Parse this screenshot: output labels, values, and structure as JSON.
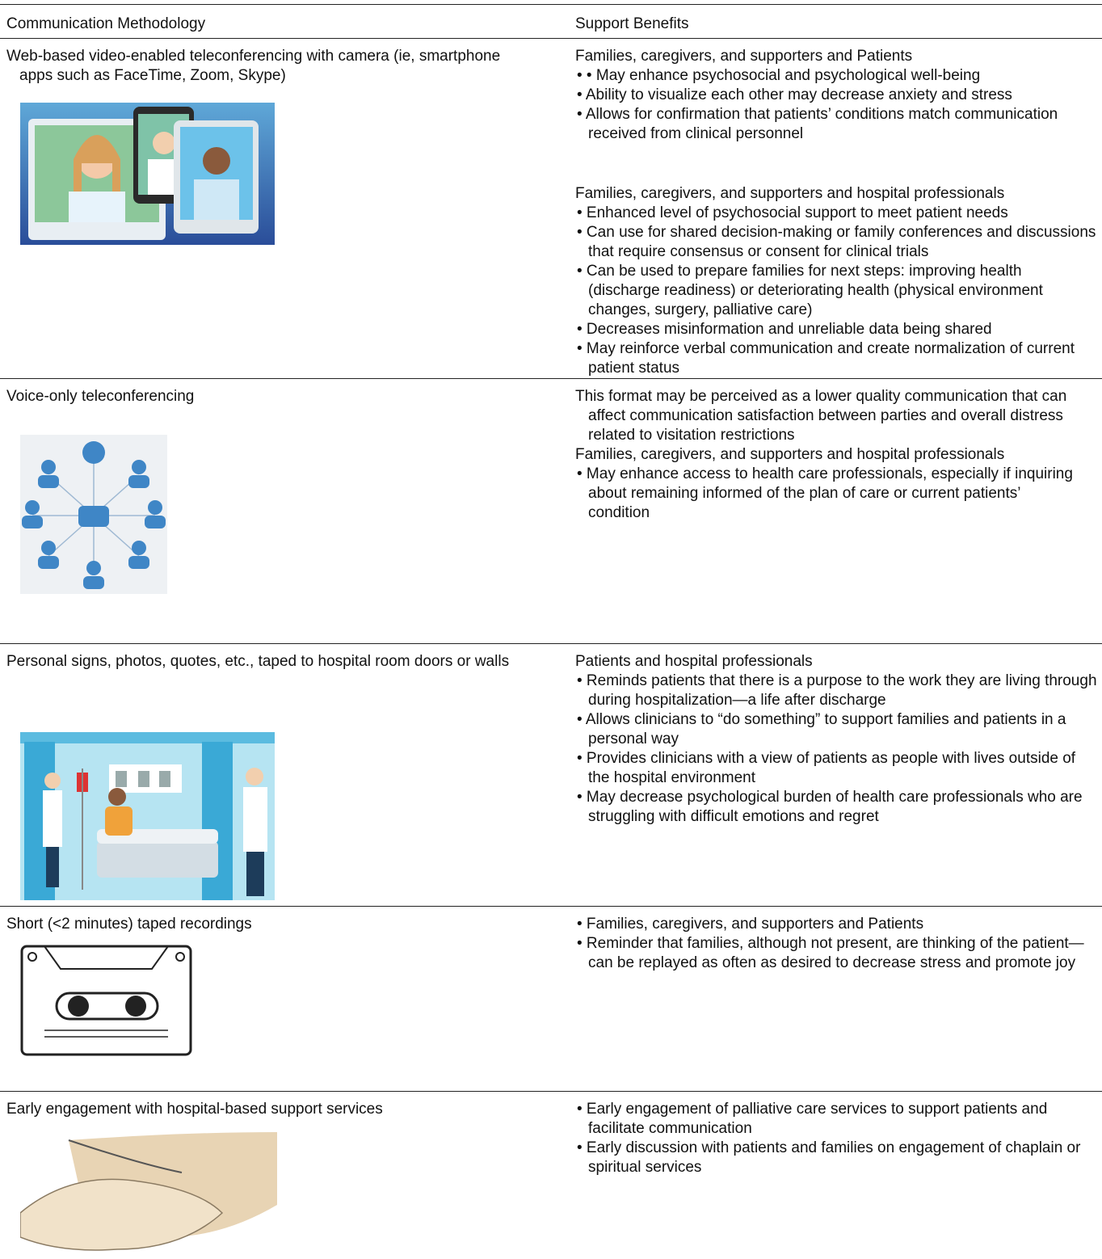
{
  "header": {
    "col1": "Communication Methodology",
    "col2": "Support Benefits"
  },
  "rows": [
    {
      "method": "Web-based video-enabled teleconferencing with camera (ie, smartphone apps such as FaceTime, Zoom, Skype)",
      "benefits": [
        "Families, caregivers, and supporters and Patients",
        "• • May enhance psychosocial and psychological well-being",
        "• Ability to visualize each other may decrease anxiety and stress",
        "• Allows for confirmation that patients’ conditions match communication received from clinical personnel",
        "Families, caregivers, and supporters and hospital professionals",
        "• Enhanced level of psychosocial support to meet patient needs",
        "• Can use for shared decision-making or family conferences and discussions that require consensus or consent for clinical trials",
        "• Can be used to prepare families for next steps: improving health (discharge readiness) or deteriorating health (physical environment changes, surgery, palliative care)",
        "• Decreases misinformation and unreliable data being shared",
        "• May reinforce verbal communication and create normalization of current patient status"
      ]
    },
    {
      "method": "Voice-only teleconferencing",
      "benefits": [
        "This format may be perceived as a lower quality communication that can affect communication satisfaction between parties and overall distress related to visitation restrictions",
        "Families, caregivers, and supporters and hospital professionals",
        "• May enhance access to health care professionals, especially if inquiring about remaining informed of the plan of care or current patients’",
        "condition"
      ]
    },
    {
      "method": "Personal signs, photos, quotes, etc., taped to hospital room doors or walls",
      "benefits": [
        "Patients and hospital professionals",
        "• Reminds patients that there is a purpose to the work they are living through during hospitalization—a life after discharge",
        "• Allows clinicians to “do something” to support families and patients in a personal way",
        "• Provides clinicians with a view of patients as people with lives outside of the hospital environment",
        "• May decrease psychological burden of health care professionals who are struggling with difficult emotions and regret"
      ]
    },
    {
      "method": "Short (<2 minutes) taped recordings",
      "benefits": [
        "• Families, caregivers, and supporters and Patients",
        "• Reminder that families, although not present, are thinking of the patient—can be replayed as often as desired to decrease stress and promote joy"
      ]
    },
    {
      "method": "Early engagement with hospital-based support services",
      "benefits": [
        "• Early engagement of palliative care services to support patients and facilitate communication",
        "• Early discussion with patients and families on engagement of chaplain or spiritual services"
      ]
    }
  ]
}
